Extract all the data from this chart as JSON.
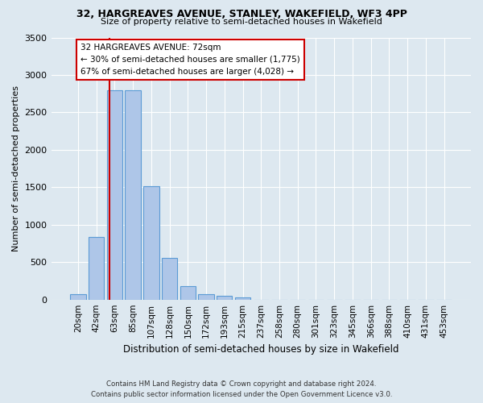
{
  "title": "32, HARGREAVES AVENUE, STANLEY, WAKEFIELD, WF3 4PP",
  "subtitle": "Size of property relative to semi-detached houses in Wakefield",
  "xlabel": "Distribution of semi-detached houses by size in Wakefield",
  "ylabel": "Number of semi-detached properties",
  "bar_labels": [
    "20sqm",
    "42sqm",
    "63sqm",
    "85sqm",
    "107sqm",
    "128sqm",
    "150sqm",
    "172sqm",
    "193sqm",
    "215sqm",
    "237sqm",
    "258sqm",
    "280sqm",
    "301sqm",
    "323sqm",
    "345sqm",
    "366sqm",
    "388sqm",
    "410sqm",
    "431sqm",
    "453sqm"
  ],
  "bar_values": [
    70,
    840,
    2790,
    2790,
    1510,
    555,
    175,
    75,
    50,
    30,
    0,
    0,
    0,
    0,
    0,
    0,
    0,
    0,
    0,
    0,
    0
  ],
  "bar_color": "#aec6e8",
  "bar_edge_color": "#5b9bd5",
  "vline_x_index": 1.72,
  "property_sqm": 72,
  "annotation_text": "32 HARGREAVES AVENUE: 72sqm\n← 30% of semi-detached houses are smaller (1,775)\n67% of semi-detached houses are larger (4,028) →",
  "annotation_box_color": "#ffffff",
  "annotation_box_edge": "#cc0000",
  "vline_color": "#cc0000",
  "ylim": [
    0,
    3500
  ],
  "yticks": [
    0,
    500,
    1000,
    1500,
    2000,
    2500,
    3000,
    3500
  ],
  "background_color": "#dde8f0",
  "grid_color": "#ffffff",
  "footer_line1": "Contains HM Land Registry data © Crown copyright and database right 2024.",
  "footer_line2": "Contains public sector information licensed under the Open Government Licence v3.0."
}
